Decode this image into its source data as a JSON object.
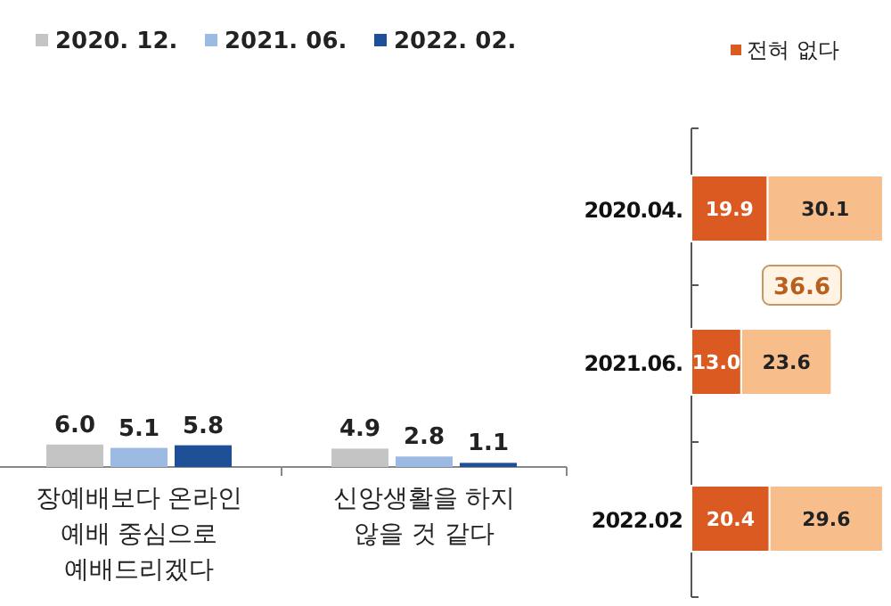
{
  "chart_data": [
    {
      "type": "bar",
      "categories": [
        "장예배보다 온라인 예배 중심으로 예배드리겠다",
        "신앙생활을 하지 않을 것 같다"
      ],
      "series": [
        {
          "name": "2020. 12.",
          "color": "#c4c4c4",
          "values": [
            6.0,
            4.9
          ],
          "value_labels": [
            "6.0",
            "4.9"
          ]
        },
        {
          "name": "2021. 06.",
          "color": "#9dbbe2",
          "values": [
            5.1,
            2.8
          ]
        },
        {
          "name": "2022. 02.",
          "color": "#1f4f96",
          "values": [
            5.8,
            1.1
          ]
        }
      ],
      "data_labels": true,
      "legend": "top"
    },
    {
      "type": "bar",
      "orientation": "horizontal",
      "stacked": true,
      "categories": [
        "2020.04.",
        "2021.06.",
        "2022.02"
      ],
      "series": [
        {
          "name": "전혀 없다",
          "color": "#da5a22",
          "values": [
            19.9,
            13.0,
            20.4
          ],
          "value_labels": [
            "19.9",
            "13.0",
            "20.4"
          ]
        },
        {
          "color": "#f7be8c",
          "values": [
            30.1,
            23.6,
            29.6
          ]
        }
      ],
      "data_labels": true,
      "legend": "top",
      "annotations": [
        "36.6"
      ]
    }
  ]
}
